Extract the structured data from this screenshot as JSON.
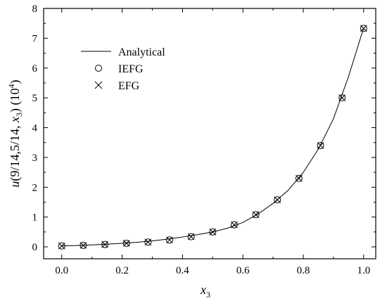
{
  "chart_data": {
    "type": "line",
    "xlabel": "x3",
    "xlabel_main": "x",
    "xlabel_sub": "3",
    "ylabel": "u(9/14,5/14,x3) (10^4)",
    "ylabel_parts": {
      "u": "u",
      "args_before": "(9/14,5/14, ",
      "x": "x",
      "sub": "3",
      "close": ")",
      "unit_open": " (10",
      "unit_sup": "4",
      "unit_close": ")"
    },
    "xlim": [
      -0.06,
      1.04
    ],
    "ylim": [
      -0.4,
      8
    ],
    "x_ticks": [
      0.0,
      0.2,
      0.4,
      0.6,
      0.8,
      1.0
    ],
    "x_tick_labels": [
      "0.0",
      "0.2",
      "0.4",
      "0.6",
      "0.8",
      "1.0"
    ],
    "y_ticks": [
      0,
      1,
      2,
      3,
      4,
      5,
      6,
      7,
      8
    ],
    "y_tick_labels": [
      "0",
      "1",
      "2",
      "3",
      "4",
      "5",
      "6",
      "7",
      "8"
    ],
    "legend_position": "top-left",
    "series": [
      {
        "name": "Analytical",
        "style": "line",
        "x": [
          0.0,
          0.05,
          0.1,
          0.15,
          0.2,
          0.25,
          0.3,
          0.35,
          0.4,
          0.45,
          0.5,
          0.55,
          0.6,
          0.65,
          0.7,
          0.75,
          0.8,
          0.85,
          0.9,
          0.95,
          1.0
        ],
        "values": [
          0.03,
          0.045,
          0.065,
          0.09,
          0.12,
          0.155,
          0.2,
          0.26,
          0.33,
          0.41,
          0.5,
          0.63,
          0.82,
          1.1,
          1.46,
          1.9,
          2.5,
          3.28,
          4.3,
          5.72,
          7.35
        ]
      },
      {
        "name": "IEFG",
        "style": "circle",
        "x": [
          0.0,
          0.0714,
          0.1429,
          0.2143,
          0.2857,
          0.3571,
          0.4286,
          0.5,
          0.5714,
          0.6429,
          0.7143,
          0.7857,
          0.8571,
          0.9286,
          1.0
        ],
        "values": [
          0.03,
          0.05,
          0.08,
          0.12,
          0.16,
          0.23,
          0.34,
          0.5,
          0.74,
          1.08,
          1.58,
          2.3,
          3.4,
          5.0,
          7.33
        ]
      },
      {
        "name": "EFG",
        "style": "cross",
        "x": [
          0.0,
          0.0714,
          0.1429,
          0.2143,
          0.2857,
          0.3571,
          0.4286,
          0.5,
          0.5714,
          0.6429,
          0.7143,
          0.7857,
          0.8571,
          0.9286,
          1.0
        ],
        "values": [
          0.03,
          0.05,
          0.08,
          0.12,
          0.16,
          0.23,
          0.34,
          0.5,
          0.74,
          1.08,
          1.58,
          2.3,
          3.4,
          5.0,
          7.33
        ]
      }
    ]
  }
}
